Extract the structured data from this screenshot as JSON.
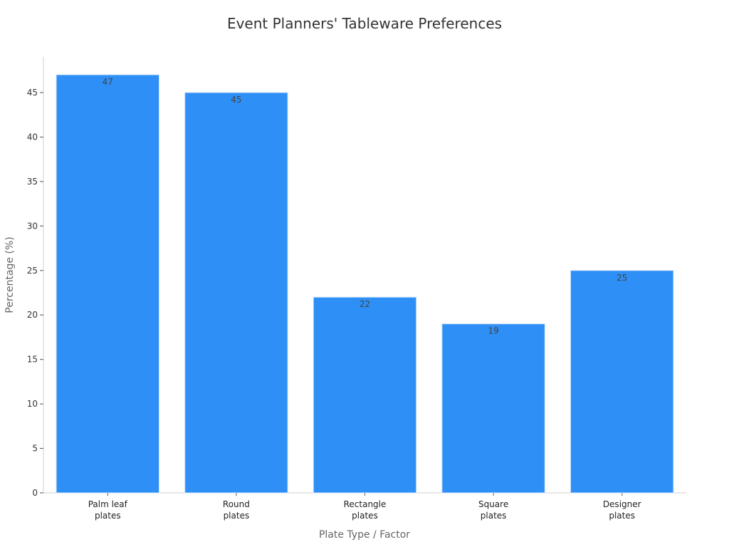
{
  "chart_data": {
    "type": "bar",
    "title": "Event Planners' Tableware Preferences",
    "xlabel": "Plate Type / Factor",
    "ylabel": "Percentage (%)",
    "categories": [
      [
        "Palm leaf",
        "plates"
      ],
      [
        "Round",
        "plates"
      ],
      [
        "Rectangle",
        "plates"
      ],
      [
        "Square",
        "plates"
      ],
      [
        "Designer",
        "plates"
      ]
    ],
    "values": [
      47,
      45,
      22,
      19,
      25
    ],
    "ylim": [
      0,
      49
    ],
    "yticks": [
      0,
      5,
      10,
      15,
      20,
      25,
      30,
      35,
      40,
      45
    ],
    "grid": false,
    "legend": "none",
    "colors": {
      "bar": "#2e90f6"
    }
  }
}
